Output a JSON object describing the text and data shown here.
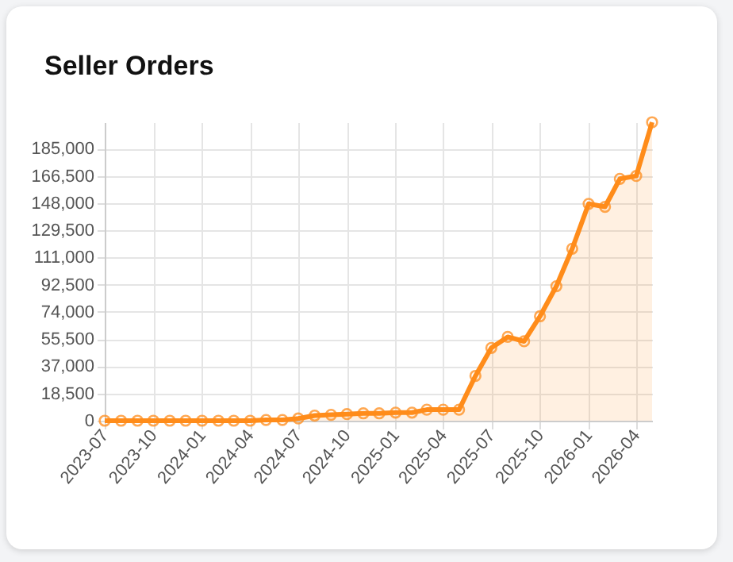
{
  "chart_data": {
    "type": "area",
    "title": "Seller Orders",
    "x": [
      "2023-07",
      "2023-08",
      "2023-09",
      "2023-10",
      "2023-11",
      "2023-12",
      "2024-01",
      "2024-02",
      "2024-03",
      "2024-04",
      "2024-05",
      "2024-06",
      "2024-07",
      "2024-08",
      "2024-09",
      "2024-10",
      "2024-11",
      "2024-12",
      "2025-01",
      "2025-02",
      "2025-03",
      "2025-04",
      "2025-05",
      "2025-06",
      "2025-07",
      "2025-08",
      "2025-09",
      "2025-10",
      "2025-11",
      "2025-12",
      "2026-01",
      "2026-02",
      "2026-03",
      "2026-04",
      "2026-05"
    ],
    "series": [
      {
        "color": "#ff8c1a",
        "values": [
          0,
          0,
          0,
          0,
          0,
          0,
          0,
          0,
          0,
          0,
          500,
          500,
          1500,
          3500,
          4000,
          4500,
          5000,
          5000,
          5500,
          5500,
          7500,
          7500,
          7500,
          30500,
          49500,
          57000,
          54000,
          71000,
          91500,
          117000,
          147500,
          145500,
          164500,
          166500,
          203000
        ]
      }
    ],
    "xlim": [
      "2023-07",
      "2026-05"
    ],
    "xticks": [
      "2023-07",
      "2023-10",
      "2024-01",
      "2024-04",
      "2024-07",
      "2024-10",
      "2025-01",
      "2025-04",
      "2025-07",
      "2025-10",
      "2026-01",
      "2026-04"
    ],
    "ylim": [
      0,
      203000
    ],
    "yticks": [
      0,
      {
        "value": 18500,
        "label": "18,500"
      },
      {
        "value": 37000,
        "label": "37,000"
      },
      {
        "value": 55500,
        "label": "55,500"
      },
      {
        "value": 74000,
        "label": "74,000"
      },
      {
        "value": 92500,
        "label": "92,500"
      },
      {
        "value": 111000,
        "label": "111,000"
      },
      {
        "value": 129500,
        "label": "129,500"
      },
      {
        "value": 148000,
        "label": "148,000"
      },
      {
        "value": 166500,
        "label": "166,500"
      },
      {
        "value": 185000,
        "label": "185,000"
      }
    ],
    "grid": true,
    "marker": "circle",
    "line_style": "solid"
  }
}
